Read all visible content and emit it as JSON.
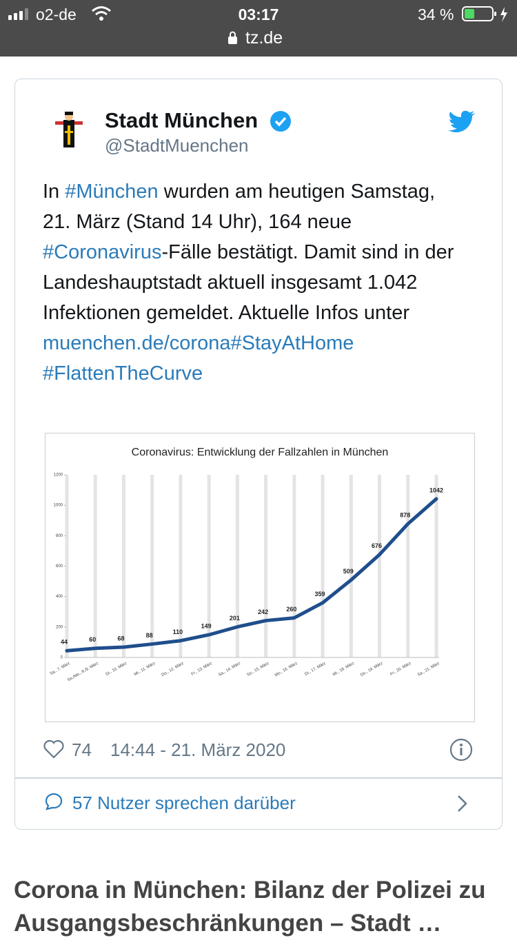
{
  "status_bar": {
    "carrier": "o2-de",
    "time": "03:17",
    "battery": "34 %",
    "url": "tz.de"
  },
  "tweet": {
    "name": "Stadt München",
    "handle": "@StadtMuenchen",
    "text": [
      {
        "text": "In ",
        "link": false
      },
      {
        "text": "#München",
        "link": true
      },
      {
        "text": " wurden am heutigen Samstag, 21. März (Stand 14 Uhr), 164 neue ",
        "link": false
      },
      {
        "text": "#Coronavirus",
        "link": true
      },
      {
        "text": "-Fälle bestätigt. Damit sind in der Landeshauptstadt aktuell insgesamt 1.042 Infektionen gemeldet. Aktuelle Infos unter ",
        "link": false
      },
      {
        "text": "muenchen.de/corona",
        "link": true
      },
      {
        "text": "#StayAtHome",
        "link": true
      },
      {
        "text": " ",
        "link": false
      },
      {
        "text": "#FlattenTheCurve",
        "link": true
      }
    ],
    "likes": "74",
    "timestamp": "14:44 - 21. März 2020",
    "conversation": "57 Nutzer sprechen darüber"
  },
  "chart_data": {
    "type": "line",
    "title": "Coronavirus: Entwicklung der Fallzahlen in München",
    "categories": [
      "Sa., 7. März",
      "So./Mo., 8./9. März",
      "Di., 10. März",
      "Mi., 11. März",
      "Do., 12. März",
      "Fr., 13. März",
      "Sa., 14. März",
      "So., 15. März",
      "Mo., 16. März",
      "Di., 17. März",
      "Mi., 18. März",
      "Do., 19. März",
      "Fr., 20. März",
      "Sa., 21. März"
    ],
    "values": [
      44,
      60,
      68,
      88,
      110,
      149,
      201,
      242,
      260,
      359,
      509,
      676,
      878,
      1042
    ],
    "color": "#1f4e8c",
    "ylim": [
      0,
      1200
    ],
    "yticks": [
      0,
      200,
      400,
      600,
      800,
      1000,
      1200
    ],
    "grid": true
  },
  "article": {
    "headline": "Corona in München: Bilanz der Polizei zu Ausgangsbeschränkungen – Stadt …"
  }
}
